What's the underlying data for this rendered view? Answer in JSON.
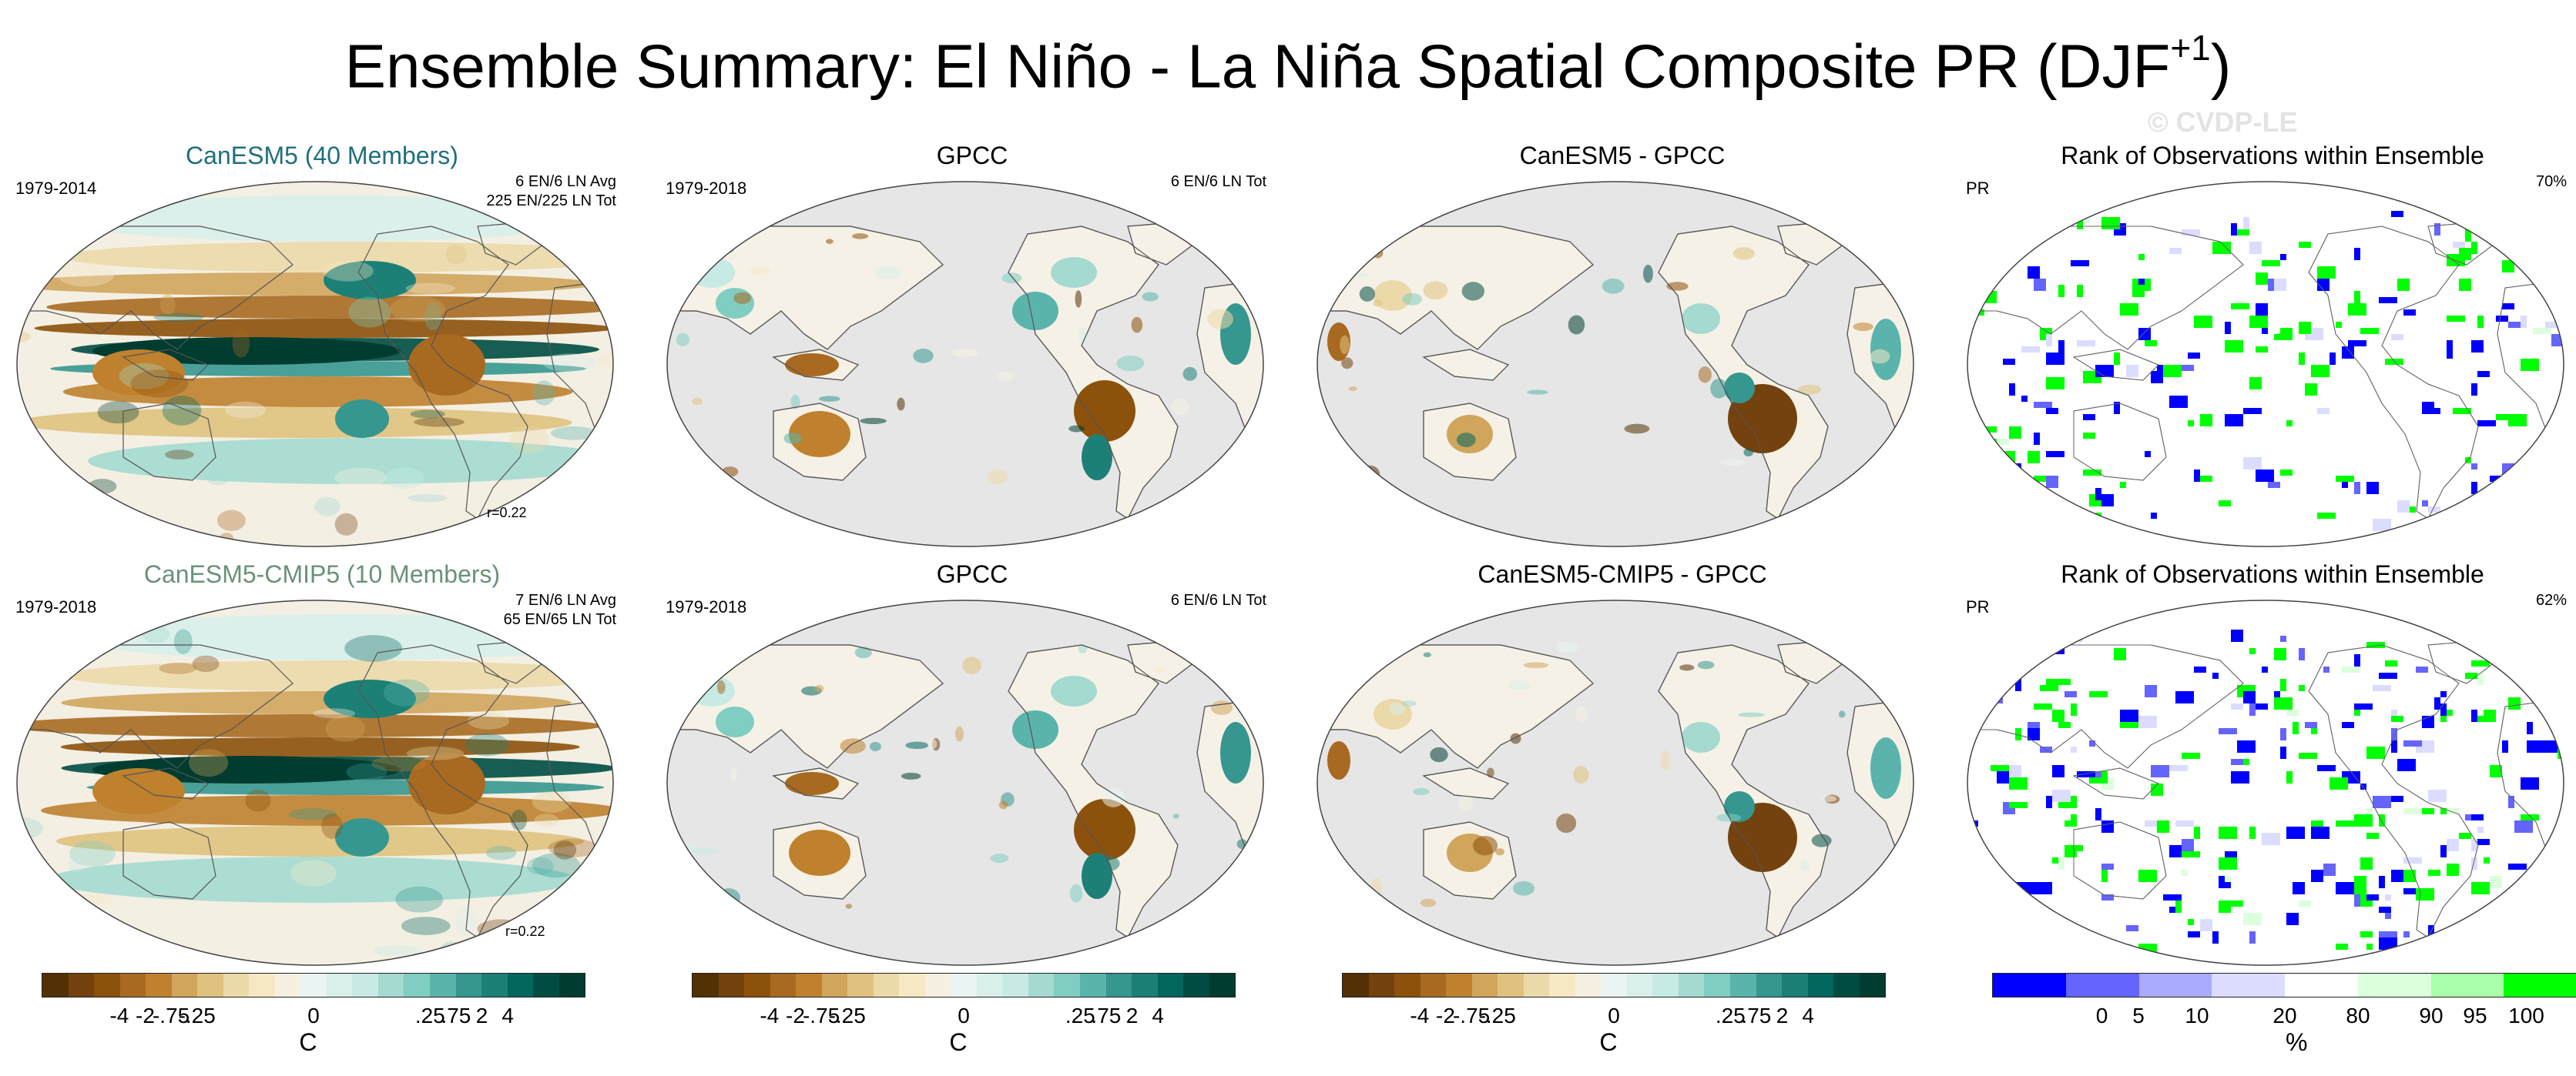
{
  "title": {
    "main": "Ensemble Summary: El Niño - La Niña Spatial Composite PR (DJF",
    "superscript": "+1",
    "close": ")"
  },
  "watermark": "© CVDP-LE",
  "panels": [
    {
      "title": "CanESM5 (40 Members)",
      "years": "1979-2014",
      "info": "6 EN/6 LN Avg\n225 EN/225 LN Tot",
      "r": "r=0.22",
      "kind": "model"
    },
    {
      "title": "GPCC",
      "years": "1979-2018",
      "info": "6 EN/6 LN Tot",
      "r": "",
      "kind": "obs"
    },
    {
      "title": "CanESM5 - GPCC",
      "years": "",
      "info": "",
      "r": "",
      "kind": "diff"
    },
    {
      "title": "Rank of Observations within Ensemble",
      "years": "PR",
      "info": "70%",
      "r": "",
      "kind": "rank"
    },
    {
      "title": "CanESM5-CMIP5 (10 Members)",
      "years": "1979-2018",
      "info": "7 EN/6 LN Avg\n65 EN/65 LN Tot",
      "r": "r=0.22",
      "kind": "model"
    },
    {
      "title": "GPCC",
      "years": "1979-2018",
      "info": "6 EN/6 LN Tot",
      "r": "",
      "kind": "obs"
    },
    {
      "title": "CanESM5-CMIP5 - GPCC",
      "years": "",
      "info": "",
      "r": "",
      "kind": "diff"
    },
    {
      "title": "Rank of Observations within Ensemble",
      "years": "PR",
      "info": "62%",
      "r": "",
      "kind": "rank"
    }
  ],
  "colorbars": {
    "anomaly": {
      "ticks": [
        "-4",
        "-2",
        "-.75",
        "-.25",
        "0",
        ".25",
        ".75",
        "2",
        "4"
      ],
      "unit": "C",
      "colors": [
        "#543005",
        "#74420e",
        "#8c510a",
        "#a86a21",
        "#bf812d",
        "#d0a55c",
        "#dfc27d",
        "#ecd9a9",
        "#f6e8c3",
        "#f5f0e1",
        "#eaf4f2",
        "#d8efea",
        "#c7eae5",
        "#a4dad0",
        "#80cdc1",
        "#5ab4ab",
        "#35978f",
        "#1d8077",
        "#01665e",
        "#004c43",
        "#003c30"
      ]
    },
    "rank": {
      "ticks": [
        "0",
        "5",
        "10",
        "20",
        "80",
        "90",
        "95",
        "100"
      ],
      "unit": "%",
      "colors": [
        "#0000ff",
        "#6464ff",
        "#aaaaff",
        "#dcdcff",
        "#ffffff",
        "#dcffdc",
        "#aaffaa",
        "#00ff00"
      ]
    }
  }
}
